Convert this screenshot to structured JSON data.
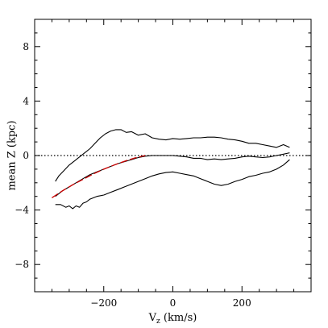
{
  "chart_data": {
    "type": "line",
    "xlabel": {
      "main": "V",
      "sub": "z",
      "rest": " (km/s)"
    },
    "ylabel": "mean Z (kpc)",
    "xlim": [
      -400,
      400
    ],
    "ylim": [
      -10,
      10
    ],
    "xticks_major": [
      -200,
      0,
      200
    ],
    "xticks_minor_step": 50,
    "yticks_major": [
      -8,
      -4,
      0,
      4,
      8
    ],
    "yticks_minor_step": 1,
    "x_tick_labels": [
      "−200",
      "0",
      "200"
    ],
    "y_tick_labels": [
      "−8",
      "−4",
      "0",
      "4",
      "8"
    ],
    "grid": false,
    "reference_line": {
      "y": 0,
      "style": "dotted"
    },
    "colors": {
      "frame": "#000000",
      "mean_curve": "#000000",
      "fit": "#cc0000"
    },
    "series": [
      {
        "role": "upper_envelope",
        "style": "solid",
        "x": [
          -340,
          -330,
          -315,
          -300,
          -285,
          -270,
          -255,
          -240,
          -225,
          -210,
          -195,
          -180,
          -165,
          -150,
          -135,
          -120,
          -100,
          -80,
          -60,
          -40,
          -20,
          0,
          20,
          40,
          60,
          80,
          100,
          120,
          140,
          160,
          180,
          200,
          220,
          240,
          260,
          280,
          300,
          320,
          338
        ],
        "y": [
          -1.9,
          -1.5,
          -1.1,
          -0.7,
          -0.4,
          -0.1,
          0.2,
          0.5,
          0.9,
          1.3,
          1.6,
          1.8,
          1.9,
          1.9,
          1.7,
          1.75,
          1.5,
          1.6,
          1.3,
          1.2,
          1.15,
          1.25,
          1.2,
          1.25,
          1.3,
          1.3,
          1.35,
          1.35,
          1.3,
          1.2,
          1.15,
          1.05,
          0.9,
          0.9,
          0.8,
          0.7,
          0.6,
          0.8,
          0.6
        ]
      },
      {
        "role": "mean",
        "style": "solid",
        "x": [
          -340,
          -320,
          -300,
          -280,
          -260,
          -240,
          -220,
          -200,
          -180,
          -160,
          -140,
          -120,
          -100,
          -80,
          -60,
          -40,
          -20,
          0,
          20,
          40,
          60,
          80,
          100,
          120,
          140,
          160,
          180,
          200,
          220,
          240,
          260,
          280,
          300,
          320,
          338
        ],
        "y": [
          -3.0,
          -2.6,
          -2.3,
          -2.0,
          -1.7,
          -1.4,
          -1.2,
          -1.0,
          -0.8,
          -0.6,
          -0.45,
          -0.3,
          -0.15,
          -0.05,
          0.0,
          0.0,
          0.0,
          0.0,
          -0.05,
          -0.1,
          -0.2,
          -0.2,
          -0.3,
          -0.25,
          -0.3,
          -0.25,
          -0.2,
          -0.1,
          -0.05,
          -0.1,
          -0.15,
          -0.1,
          0.0,
          0.1,
          0.2
        ]
      },
      {
        "role": "lower_envelope",
        "style": "solid",
        "x": [
          -340,
          -325,
          -310,
          -300,
          -290,
          -280,
          -270,
          -260,
          -250,
          -240,
          -220,
          -200,
          -180,
          -160,
          -140,
          -120,
          -100,
          -80,
          -60,
          -40,
          -20,
          0,
          20,
          40,
          60,
          80,
          100,
          120,
          140,
          160,
          180,
          200,
          220,
          240,
          260,
          280,
          300,
          320,
          338
        ],
        "y": [
          -3.6,
          -3.6,
          -3.8,
          -3.7,
          -3.9,
          -3.7,
          -3.8,
          -3.5,
          -3.4,
          -3.2,
          -3.0,
          -2.9,
          -2.7,
          -2.5,
          -2.3,
          -2.1,
          -1.9,
          -1.7,
          -1.5,
          -1.35,
          -1.25,
          -1.2,
          -1.3,
          -1.4,
          -1.5,
          -1.7,
          -1.9,
          -2.1,
          -2.2,
          -2.1,
          -1.9,
          -1.75,
          -1.55,
          -1.45,
          -1.3,
          -1.2,
          -1.0,
          -0.7,
          -0.3
        ]
      },
      {
        "role": "fit",
        "style": "dashed",
        "x": [
          -350,
          -320,
          -290,
          -260,
          -230,
          -200,
          -170,
          -140,
          -110,
          -80
        ],
        "y": [
          -3.1,
          -2.6,
          -2.15,
          -1.75,
          -1.35,
          -1.0,
          -0.7,
          -0.42,
          -0.18,
          0.0
        ]
      }
    ]
  }
}
